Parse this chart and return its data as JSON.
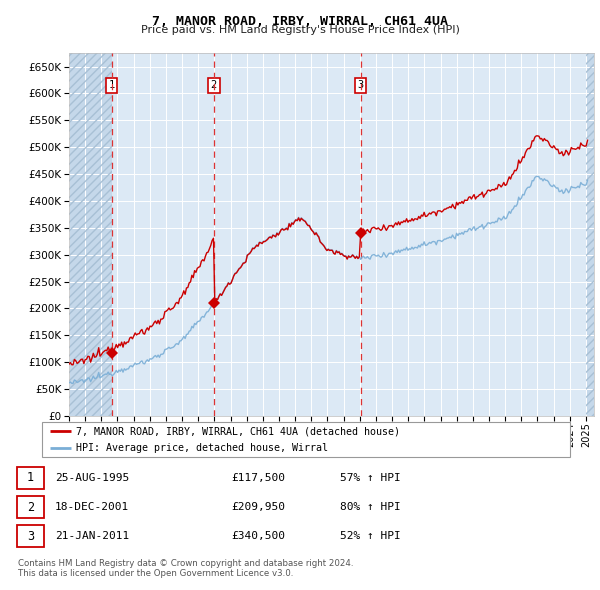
{
  "title": "7, MANOR ROAD, IRBY, WIRRAL, CH61 4UA",
  "subtitle": "Price paid vs. HM Land Registry's House Price Index (HPI)",
  "ylim": [
    0,
    675000
  ],
  "yticks": [
    0,
    50000,
    100000,
    150000,
    200000,
    250000,
    300000,
    350000,
    400000,
    450000,
    500000,
    550000,
    600000,
    650000
  ],
  "xlim_start": 1993.0,
  "xlim_end": 2025.5,
  "legend_line1": "7, MANOR ROAD, IRBY, WIRRAL, CH61 4UA (detached house)",
  "legend_line2": "HPI: Average price, detached house, Wirral",
  "transactions": [
    {
      "num": 1,
      "date_num": 1995.646,
      "price": 117500,
      "label": "25-AUG-1995",
      "amount": "£117,500",
      "change": "57% ↑ HPI"
    },
    {
      "num": 2,
      "date_num": 2001.964,
      "price": 209950,
      "label": "18-DEC-2001",
      "amount": "£209,950",
      "change": "80% ↑ HPI"
    },
    {
      "num": 3,
      "date_num": 2011.055,
      "price": 340500,
      "label": "21-JAN-2011",
      "amount": "£340,500",
      "change": "52% ↑ HPI"
    }
  ],
  "price_color": "#cc0000",
  "hpi_color": "#7aaed6",
  "plot_bg_color": "#dce9f5",
  "grid_color": "#ffffff",
  "footnote1": "Contains HM Land Registry data © Crown copyright and database right 2024.",
  "footnote2": "This data is licensed under the Open Government Licence v3.0."
}
